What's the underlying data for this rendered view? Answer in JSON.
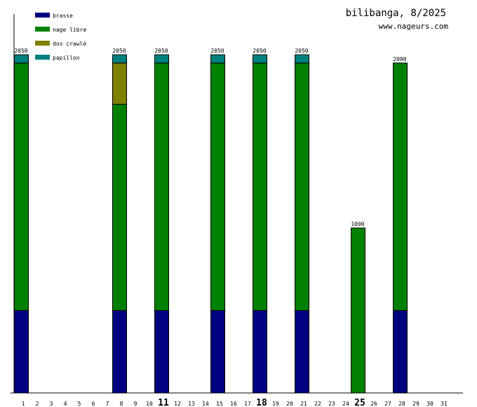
{
  "chart_data": {
    "type": "bar",
    "stacked": true,
    "title": "bilibanga, 8/2025",
    "subtitle": "www.nageurs.com",
    "xlabel": "",
    "ylabel": "",
    "ylim": [
      0,
      2050
    ],
    "x": [
      1,
      2,
      3,
      4,
      5,
      6,
      7,
      8,
      9,
      10,
      11,
      12,
      13,
      14,
      15,
      16,
      17,
      18,
      19,
      20,
      21,
      22,
      23,
      24,
      25,
      26,
      27,
      28,
      29,
      30,
      31
    ],
    "bold_days": [
      11,
      18,
      25
    ],
    "legend_position": "top-left",
    "series": [
      {
        "name": "brasse",
        "color": "#000080",
        "values": [
          500,
          0,
          0,
          0,
          0,
          0,
          0,
          500,
          0,
          0,
          500,
          0,
          0,
          0,
          500,
          0,
          0,
          500,
          0,
          0,
          500,
          0,
          0,
          0,
          0,
          0,
          0,
          500,
          0,
          0,
          0
        ]
      },
      {
        "name": "nage libre",
        "color": "#008000",
        "values": [
          1500,
          0,
          0,
          0,
          0,
          0,
          0,
          1250,
          0,
          0,
          1500,
          0,
          0,
          0,
          1500,
          0,
          0,
          1500,
          0,
          0,
          1500,
          0,
          0,
          0,
          1000,
          0,
          0,
          1500,
          0,
          0,
          0
        ]
      },
      {
        "name": "dos crawlé",
        "color": "#808000",
        "values": [
          0,
          0,
          0,
          0,
          0,
          0,
          0,
          250,
          0,
          0,
          0,
          0,
          0,
          0,
          0,
          0,
          0,
          0,
          0,
          0,
          0,
          0,
          0,
          0,
          0,
          0,
          0,
          0,
          0,
          0,
          0
        ]
      },
      {
        "name": "papillon",
        "color": "#008080",
        "values": [
          50,
          0,
          0,
          0,
          0,
          0,
          0,
          50,
          0,
          0,
          50,
          0,
          0,
          0,
          50,
          0,
          0,
          50,
          0,
          0,
          50,
          0,
          0,
          0,
          0,
          0,
          0,
          0,
          0,
          0,
          0
        ]
      }
    ]
  }
}
